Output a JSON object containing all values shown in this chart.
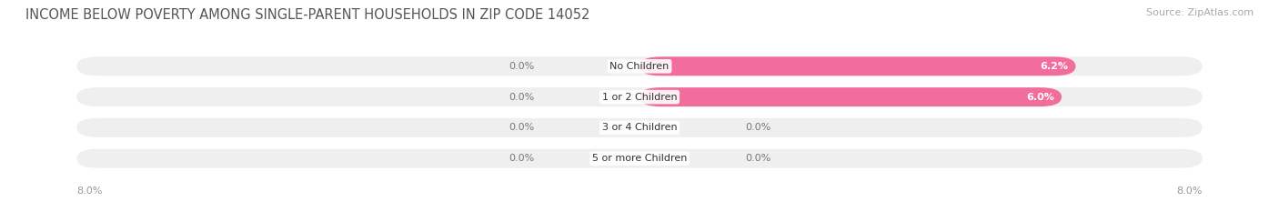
{
  "title": "INCOME BELOW POVERTY AMONG SINGLE-PARENT HOUSEHOLDS IN ZIP CODE 14052",
  "source": "Source: ZipAtlas.com",
  "categories": [
    "No Children",
    "1 or 2 Children",
    "3 or 4 Children",
    "5 or more Children"
  ],
  "single_father": [
    0.0,
    0.0,
    0.0,
    0.0
  ],
  "single_mother": [
    6.2,
    6.0,
    0.0,
    0.0
  ],
  "father_color": "#a8c4e0",
  "mother_color": "#f26d9b",
  "bg_bar_color": "#efefef",
  "xlim_left": -8.0,
  "xlim_right": 8.0,
  "title_fontsize": 10.5,
  "source_fontsize": 8,
  "value_fontsize": 8,
  "cat_fontsize": 8,
  "legend_fontsize": 8.5,
  "bg_color": "#ffffff",
  "bar_height": 0.62
}
